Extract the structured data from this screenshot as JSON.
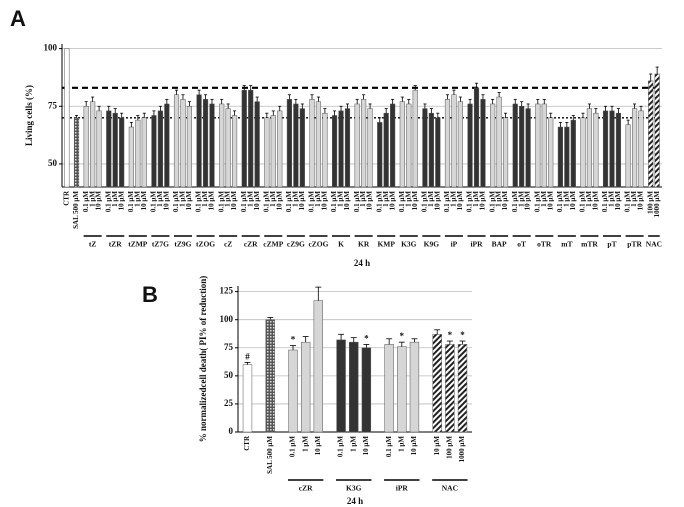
{
  "chart_data": [
    {
      "type": "bar",
      "panel": "A",
      "ylabel": "Living cells (%)",
      "xlabel": "24 h",
      "ylim": [
        40,
        102
      ],
      "yticks": [
        50,
        75,
        100
      ],
      "grid": true,
      "reference_lines": [
        {
          "value": 83,
          "style": "dashed"
        },
        {
          "value": 70,
          "style": "dotted"
        }
      ],
      "groups": [
        {
          "color": "#ffffff",
          "categories": [
            "CTR"
          ],
          "values": [
            100
          ]
        },
        {
          "pattern": "checker",
          "categories": [
            "SAL 500 µM"
          ],
          "values": [
            70
          ],
          "errors": [
            1
          ]
        },
        {
          "label": "tZ",
          "color": "#d6d6d6",
          "categories": [
            "0.1 µM",
            "1 µM",
            "10 µM"
          ],
          "values": [
            75,
            77,
            73
          ],
          "errors": [
            2,
            2,
            2
          ]
        },
        {
          "label": "tZR",
          "color": "#333333",
          "categories": [
            "0.1 µM",
            "1 µM",
            "10 µM"
          ],
          "values": [
            73,
            72,
            70
          ],
          "errors": [
            2,
            2,
            2
          ]
        },
        {
          "label": "tZMP",
          "color": "#d6d6d6",
          "categories": [
            "0.1 µM",
            "1 µM",
            "10 µM"
          ],
          "values": [
            66,
            69,
            70
          ],
          "errors": [
            2,
            2,
            2
          ]
        },
        {
          "label": "tZ7G",
          "color": "#333333",
          "categories": [
            "0.1 µM",
            "1 µM",
            "10 µM"
          ],
          "values": [
            71,
            73,
            76
          ],
          "errors": [
            2,
            2,
            2
          ]
        },
        {
          "label": "tZ9G",
          "color": "#d6d6d6",
          "categories": [
            "0.1 µM",
            "1 µM",
            "10 µM"
          ],
          "values": [
            80,
            78,
            75
          ],
          "errors": [
            2,
            2,
            2
          ]
        },
        {
          "label": "tZOG",
          "color": "#333333",
          "categories": [
            "0.1 µM",
            "1 µM",
            "10 µM"
          ],
          "values": [
            80,
            78,
            76
          ],
          "errors": [
            2,
            2,
            2
          ]
        },
        {
          "label": "cZ",
          "color": "#d6d6d6",
          "categories": [
            "0.1 µM",
            "1 µM",
            "10 µM"
          ],
          "values": [
            76,
            74,
            71
          ],
          "errors": [
            2,
            2,
            2
          ]
        },
        {
          "label": "cZR",
          "color": "#333333",
          "categories": [
            "0.1 µM",
            "1 µM",
            "10 µM"
          ],
          "values": [
            82,
            82,
            77
          ],
          "errors": [
            2,
            2,
            2
          ]
        },
        {
          "label": "cZMP",
          "color": "#d6d6d6",
          "categories": [
            "0.1 µM",
            "1 µM",
            "10 µM"
          ],
          "values": [
            70,
            71,
            73
          ],
          "errors": [
            2,
            2,
            2
          ]
        },
        {
          "label": "cZ9G",
          "color": "#333333",
          "categories": [
            "0.1 µM",
            "1 µM",
            "10 µM"
          ],
          "values": [
            78,
            76,
            74
          ],
          "errors": [
            2,
            2,
            2
          ]
        },
        {
          "label": "cZOG",
          "color": "#d6d6d6",
          "categories": [
            "0.1 µM",
            "1 µM",
            "10 µM"
          ],
          "values": [
            78,
            77,
            72
          ],
          "errors": [
            2,
            2,
            2
          ]
        },
        {
          "label": "K",
          "color": "#333333",
          "categories": [
            "0.1 µM",
            "1 µM",
            "10 µM"
          ],
          "values": [
            71,
            73,
            74
          ],
          "errors": [
            2,
            2,
            2
          ]
        },
        {
          "label": "KR",
          "color": "#d6d6d6",
          "categories": [
            "0.1 µM",
            "1 µM",
            "10 µM"
          ],
          "values": [
            76,
            78,
            74
          ],
          "errors": [
            2,
            2,
            2
          ]
        },
        {
          "label": "KMP",
          "color": "#333333",
          "categories": [
            "0.1 µM",
            "1 µM",
            "10 µM"
          ],
          "values": [
            68,
            72,
            76
          ],
          "errors": [
            2,
            2,
            2
          ]
        },
        {
          "label": "K3G",
          "color": "#d6d6d6",
          "categories": [
            "0.1 µM",
            "1 µM",
            "10 µM"
          ],
          "values": [
            77,
            76,
            82
          ],
          "errors": [
            2,
            2,
            2
          ]
        },
        {
          "label": "K9G",
          "color": "#333333",
          "categories": [
            "0.1 µM",
            "1 µM",
            "10 µM"
          ],
          "values": [
            74,
            72,
            70
          ],
          "errors": [
            2,
            2,
            2
          ]
        },
        {
          "label": "iP",
          "color": "#d6d6d6",
          "categories": [
            "0.1 µM",
            "1 µM",
            "10 µM"
          ],
          "values": [
            78,
            80,
            77
          ],
          "errors": [
            2,
            2,
            2
          ]
        },
        {
          "label": "iPR",
          "color": "#333333",
          "categories": [
            "0.1 µM",
            "1 µM",
            "10 µM"
          ],
          "values": [
            76,
            83,
            78
          ],
          "errors": [
            2,
            2,
            2
          ]
        },
        {
          "label": "BAP",
          "color": "#d6d6d6",
          "categories": [
            "0.1 µM",
            "1 µM",
            "10 µM"
          ],
          "values": [
            76,
            79,
            70
          ],
          "errors": [
            2,
            2,
            2
          ]
        },
        {
          "label": "oT",
          "color": "#333333",
          "categories": [
            "0.1 µM",
            "1 µM",
            "10 µM"
          ],
          "values": [
            76,
            75,
            74
          ],
          "errors": [
            2,
            2,
            2
          ]
        },
        {
          "label": "oTR",
          "color": "#d6d6d6",
          "categories": [
            "0.1 µM",
            "1 µM",
            "10 µM"
          ],
          "values": [
            76,
            76,
            70
          ],
          "errors": [
            2,
            2,
            2
          ]
        },
        {
          "label": "mT",
          "color": "#333333",
          "categories": [
            "0.1 µM",
            "1 µM",
            "10 µM"
          ],
          "values": [
            66,
            66,
            69
          ],
          "errors": [
            2,
            2,
            2
          ]
        },
        {
          "label": "mTR",
          "color": "#d6d6d6",
          "categories": [
            "0.1 µM",
            "1 µM",
            "10 µM"
          ],
          "values": [
            70,
            74,
            72
          ],
          "errors": [
            2,
            2,
            2
          ]
        },
        {
          "label": "pT",
          "color": "#333333",
          "categories": [
            "0.1 µM",
            "1 µM",
            "10 µM"
          ],
          "values": [
            73,
            73,
            72
          ],
          "errors": [
            2,
            2,
            2
          ]
        },
        {
          "label": "pTR",
          "color": "#d6d6d6",
          "categories": [
            "0.1 µM",
            "1 µM",
            "10 µM"
          ],
          "values": [
            67,
            74,
            73
          ],
          "errors": [
            2,
            2,
            2
          ]
        },
        {
          "label": "NAC",
          "pattern": "hatch",
          "categories": [
            "100 µM",
            "1000 µM"
          ],
          "values": [
            86,
            89
          ],
          "errors": [
            3,
            3
          ]
        }
      ]
    },
    {
      "type": "bar",
      "panel": "B",
      "ylabel": "% normalizedcell death( PI% of reduction)",
      "xlabel": "24 h",
      "ylim": [
        0,
        130
      ],
      "yticks": [
        0,
        25,
        50,
        75,
        100,
        125
      ],
      "grid": true,
      "groups": [
        {
          "color": "#ffffff",
          "categories": [
            "CTR"
          ],
          "values": [
            60
          ],
          "errors": [
            2
          ],
          "annotations": [
            "#"
          ]
        },
        {
          "pattern": "checker",
          "categories": [
            "SAL 500 µM"
          ],
          "values": [
            100
          ],
          "errors": [
            2
          ]
        },
        {
          "label": "cZR",
          "color": "#d6d6d6",
          "categories": [
            "0.1 µM",
            "1 µM",
            "10 µM"
          ],
          "values": [
            73,
            80,
            117
          ],
          "errors": [
            4,
            5,
            12
          ],
          "annotations": [
            "*",
            null,
            null
          ]
        },
        {
          "label": "K3G",
          "color": "#333333",
          "categories": [
            "0.1 µM",
            "1 µM",
            "10 µM"
          ],
          "values": [
            82,
            80,
            75
          ],
          "errors": [
            5,
            4,
            3
          ],
          "annotations": [
            null,
            null,
            "*"
          ]
        },
        {
          "label": "iPR",
          "color": "#d6d6d6",
          "categories": [
            "0.1 µM",
            "1 µM",
            "10 µM"
          ],
          "values": [
            78,
            76,
            80
          ],
          "errors": [
            5,
            4,
            3
          ],
          "annotations": [
            null,
            "*",
            null
          ]
        },
        {
          "label": "NAC",
          "pattern": "hatch",
          "categories": [
            "10 µM",
            "100 µM",
            "1000 µM"
          ],
          "values": [
            87,
            78,
            78
          ],
          "errors": [
            4,
            3,
            3
          ],
          "annotations": [
            null,
            "*",
            "*"
          ]
        }
      ]
    }
  ]
}
